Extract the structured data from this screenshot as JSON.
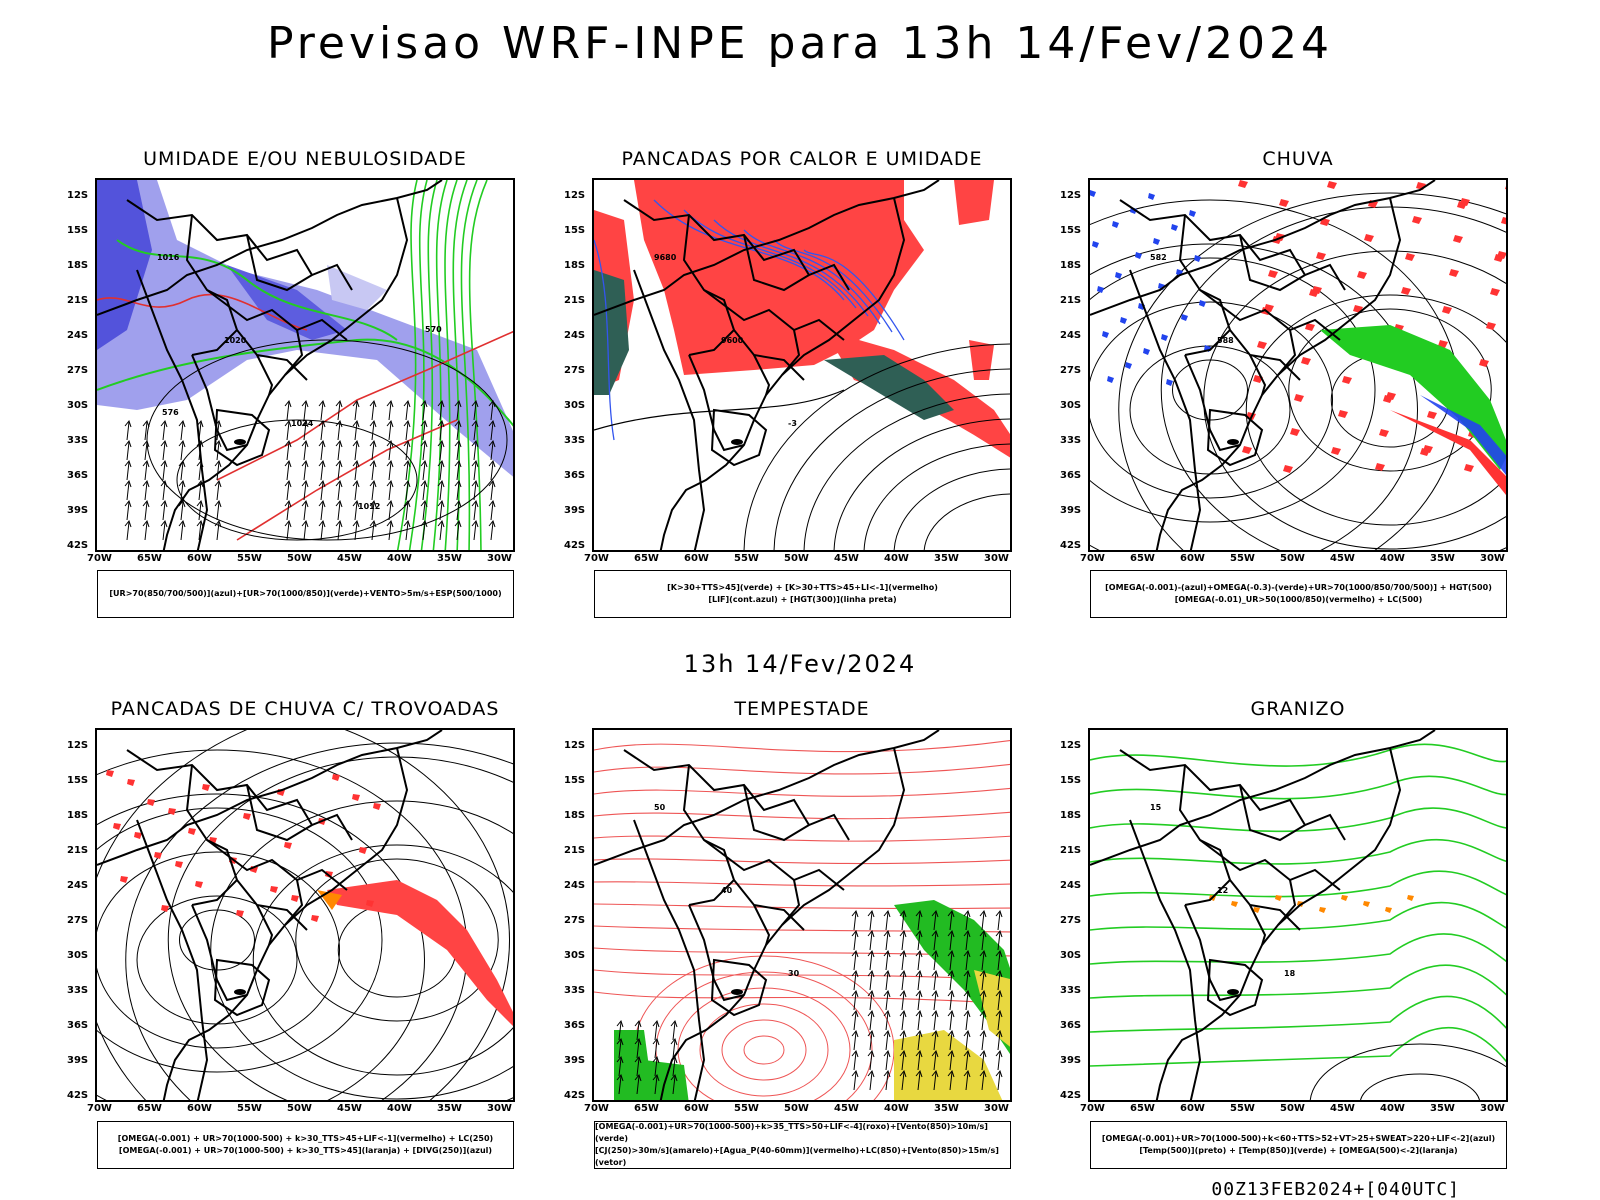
{
  "main_title": "Previsao WRF-INPE  para 13h 14/Fev/2024",
  "mid_title": "13h 14/Fev/2024",
  "footer": "00Z13FEB2024+[040UTC]",
  "lat_labels": [
    "12S",
    "15S",
    "18S",
    "21S",
    "24S",
    "27S",
    "30S",
    "33S",
    "36S",
    "39S",
    "42S"
  ],
  "lon_labels": [
    "70W",
    "65W",
    "60W",
    "55W",
    "50W",
    "45W",
    "40W",
    "35W",
    "30W"
  ],
  "panels": [
    {
      "title": "UMIDADE E/OU NEBULOSIDADE",
      "legend": [
        "[UR>70(850/700/500)](azul)+[UR>70(1000/850)](verde)+VENTO>5m/s+ESP(500/1000)"
      ],
      "labels": [
        "1016",
        "1020",
        "1024",
        "1012",
        "570",
        "576"
      ]
    },
    {
      "title": "PANCADAS POR CALOR E UMIDADE",
      "legend": [
        "[K>30+TTS>45](verde) + [K>30+TTS>45+LI<-1](vermelho)",
        "[LIF](cont.azul) + [HGT(300)](linha preta)"
      ],
      "labels": [
        "9680",
        "9600",
        "-3"
      ]
    },
    {
      "title": "CHUVA",
      "legend": [
        "[OMEGA(-0.001)-(azul)+OMEGA(-0.3)-(verde)+UR>70(1000/850/700/500)] + HGT(500)",
        "[OMEGA(-0.01)_UR>50(1000/850)(vermelho) + LC(500)"
      ],
      "labels": [
        "582",
        "588"
      ]
    },
    {
      "title": "PANCADAS DE CHUVA C/ TROVOADAS",
      "legend": [
        "[OMEGA(-0.001) + UR>70(1000-500) + k>30_TTS>45+LIF<-1](vermelho) + LC(250)",
        "[OMEGA(-0.001) + UR>70(1000-500) + k>30_TTS>45](laranja) + [DIVG(250)](azul)"
      ],
      "labels": []
    },
    {
      "title": "TEMPESTADE",
      "legend": [
        "[OMEGA(-0.001)+UR>70(1000-500)+k>35_TTS>50+LIF<-4](roxo)+[Vento(850)>10m/s](verde)",
        "[CJ(250)>30m/s](amarelo)+[Agua_P(40-60mm)](vermelho)+LC(850)+[Vento(850)>15m/s](vetor)"
      ],
      "labels": [
        "50",
        "40",
        "30"
      ]
    },
    {
      "title": "GRANIZO",
      "legend": [
        "[OMEGA(-0.001)+UR>70(1000-500)+k<60+TTS>52+VT>25+SWEAT>220+LIF<-2](azul)",
        "[Temp(500)](preto) + [Temp(850)](verde) + [OMEGA(500)<-2](laranja)"
      ],
      "labels": [
        "15",
        "12",
        "18"
      ]
    }
  ]
}
